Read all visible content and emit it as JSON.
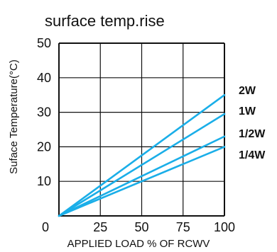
{
  "chart_data": {
    "type": "line",
    "title": "surface temp.rise",
    "xlabel": "APPLIED LOAD % OF RCWV",
    "ylabel": "Suface Temperature(°C)",
    "x_ticks": [
      "0",
      "25",
      "50",
      "75",
      "100"
    ],
    "y_ticks": [
      "10",
      "20",
      "30",
      "40",
      "50"
    ],
    "xlim": [
      0,
      100
    ],
    "ylim": [
      0,
      50
    ],
    "grid": true,
    "line_color": "#1aaee8",
    "series": [
      {
        "name": "2W",
        "x": [
          0,
          100
        ],
        "y": [
          0,
          35
        ]
      },
      {
        "name": "1W",
        "x": [
          0,
          100
        ],
        "y": [
          0,
          29.5
        ]
      },
      {
        "name": "1/2W",
        "x": [
          0,
          100
        ],
        "y": [
          0,
          23
        ]
      },
      {
        "name": "1/4W",
        "x": [
          0,
          100
        ],
        "y": [
          0,
          20
        ]
      }
    ]
  }
}
